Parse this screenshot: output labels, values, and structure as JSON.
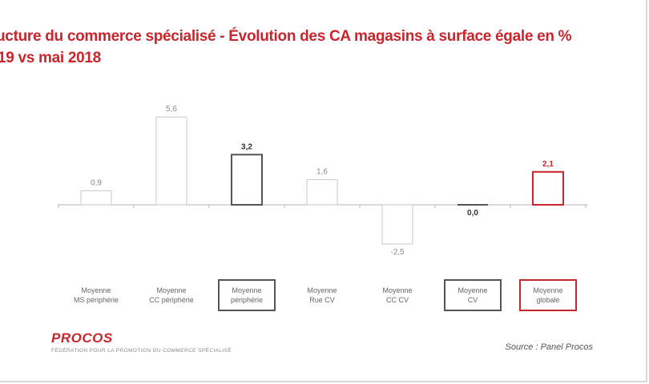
{
  "title": {
    "line1": "ucture du commerce spécialisé - Évolution des CA magasins à surface égale en %",
    "line2": "19 vs mai 2018"
  },
  "chart_data": {
    "type": "bar",
    "categories": [
      "Moyenne\nMS périphérie",
      "Moyenne\nCC périphérie",
      "Moyenne\npériphérie",
      "Moyenne\nRue CV",
      "Moyenne\nCC CV",
      "Moyenne\nCV",
      "Moyenne\nglobale"
    ],
    "values": [
      0.9,
      5.6,
      3.2,
      1.6,
      -2.5,
      0.0,
      2.1
    ],
    "value_labels": [
      "0,9",
      "5,6",
      "3,2",
      "1,6",
      "-2,5",
      "0,0",
      "2,1"
    ],
    "styles": [
      "light",
      "light",
      "dark",
      "light",
      "light",
      "dark",
      "red"
    ],
    "colors": {
      "light": "#c8c8c8",
      "dark": "#555555",
      "red": "#c8252c"
    },
    "xlabel": "",
    "ylabel": "",
    "ylim": [
      -2.5,
      5.6
    ],
    "grid": false,
    "legend": "none"
  },
  "footer": {
    "logo": "PROCOS",
    "logo_sub": "FÉDÉRATION POUR LA PROMOTION DU COMMERCE SPÉCIALISÉ",
    "source": "Source : Panel Procos"
  }
}
